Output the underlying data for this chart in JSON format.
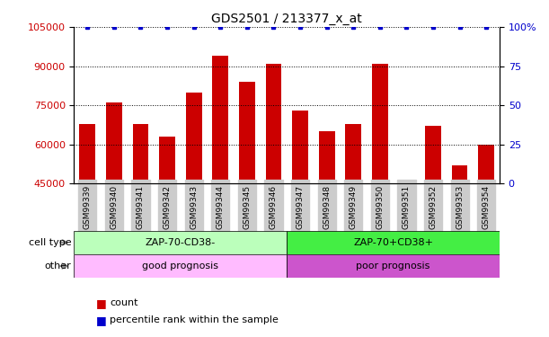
{
  "title": "GDS2501 / 213377_x_at",
  "samples": [
    "GSM99339",
    "GSM99340",
    "GSM99341",
    "GSM99342",
    "GSM99343",
    "GSM99344",
    "GSM99345",
    "GSM99346",
    "GSM99347",
    "GSM99348",
    "GSM99349",
    "GSM99350",
    "GSM99351",
    "GSM99352",
    "GSM99353",
    "GSM99354"
  ],
  "counts": [
    68000,
    76000,
    68000,
    63000,
    80000,
    94000,
    84000,
    91000,
    73000,
    65000,
    68000,
    91000,
    46000,
    67000,
    52000,
    60000
  ],
  "percentile_ranks": [
    100,
    100,
    100,
    100,
    100,
    100,
    100,
    100,
    100,
    100,
    100,
    100,
    100,
    100,
    100,
    100
  ],
  "bar_color": "#cc0000",
  "dot_color": "#0000cc",
  "ymin": 45000,
  "ymax": 105000,
  "yticks": [
    45000,
    60000,
    75000,
    90000,
    105000
  ],
  "y2min": 0,
  "y2max": 100,
  "y2ticks": [
    0,
    25,
    50,
    75,
    100
  ],
  "y2tick_labels": [
    "0",
    "25",
    "50",
    "75",
    "100%"
  ],
  "cell_type_labels": [
    "ZAP-70-CD38-",
    "ZAP-70+CD38+"
  ],
  "cell_type_color1": "#bbffbb",
  "cell_type_color2": "#44ee44",
  "other_labels": [
    "good prognosis",
    "poor prognosis"
  ],
  "other_color1": "#ffbbff",
  "other_color2": "#cc55cc",
  "group1_count": 8,
  "group2_count": 8,
  "legend_count_label": "count",
  "legend_pct_label": "percentile rank within the sample",
  "cell_type_row_label": "cell type",
  "other_row_label": "other",
  "tick_label_color_left": "#cc0000",
  "tick_label_color_right": "#0000cc",
  "title_color": "#000000",
  "sample_bg_color": "#cccccc"
}
